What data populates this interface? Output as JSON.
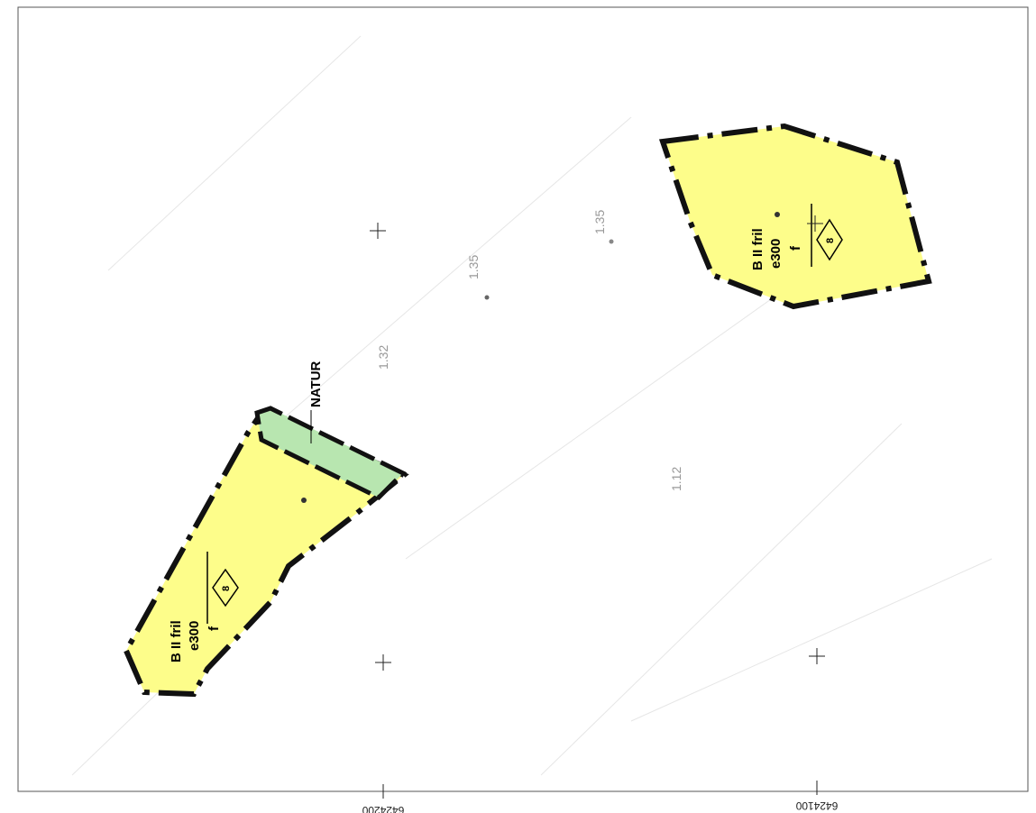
{
  "areas": [
    {
      "use": "B II fril",
      "exploitation": "e300",
      "note": "f",
      "storeys": "8"
    },
    {
      "use": "B II fril",
      "exploitation": "e300",
      "note": "f",
      "storeys": "8"
    }
  ],
  "nature_label": "NATUR",
  "grid_labels": [
    "6424200",
    "6424100"
  ],
  "height_labels": [
    "1.35",
    "1.35",
    "1.32",
    "1.12"
  ]
}
